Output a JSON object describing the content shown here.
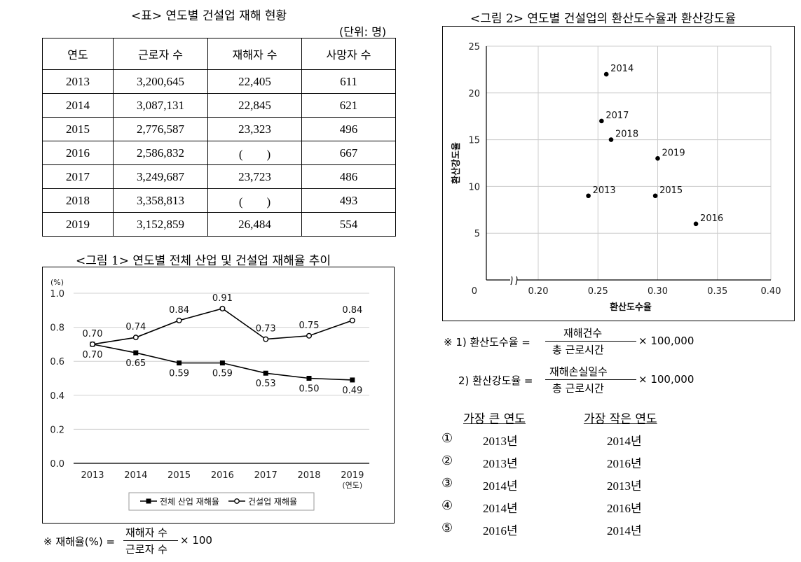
{
  "table": {
    "caption": "<표> 연도별 건설업 재해 현황",
    "unit": "(단위: 명)",
    "headers": [
      "연도",
      "근로자 수",
      "재해자 수",
      "사망자 수"
    ],
    "rows": [
      [
        "2013",
        "3,200,645",
        "22,405",
        "611"
      ],
      [
        "2014",
        "3,087,131",
        "22,845",
        "621"
      ],
      [
        "2015",
        "2,776,587",
        "23,323",
        "496"
      ],
      [
        "2016",
        "2,586,832",
        "(　　)",
        "667"
      ],
      [
        "2017",
        "3,249,687",
        "23,723",
        "486"
      ],
      [
        "2018",
        "3,358,813",
        "(　　)",
        "493"
      ],
      [
        "2019",
        "3,152,859",
        "26,484",
        "554"
      ]
    ]
  },
  "chart_data": [
    {
      "type": "line",
      "title": "<그림 1> 연도별 전체 산업 및 건설업 재해율 추이",
      "ylabel": "(%)",
      "xlabel": "(연도)",
      "categories": [
        "2013",
        "2014",
        "2015",
        "2016",
        "2017",
        "2018",
        "2019"
      ],
      "ylim": [
        0,
        1.0
      ],
      "yticks": [
        "0.0",
        "0.2",
        "0.4",
        "0.6",
        "0.8",
        "1.0"
      ],
      "grid": true,
      "legend": "bottom",
      "series": [
        {
          "name": "전체 산업 재해율",
          "marker": "square",
          "values": [
            0.7,
            0.65,
            0.59,
            0.59,
            0.53,
            0.5,
            0.49
          ],
          "labels": [
            "0.70",
            "0.65",
            "0.59",
            "0.59",
            "0.53",
            "0.50",
            "0.49"
          ]
        },
        {
          "name": "건설업 재해율",
          "marker": "circle",
          "values": [
            0.7,
            0.74,
            0.84,
            0.91,
            0.73,
            0.75,
            0.84
          ],
          "labels": [
            "0.70",
            "0.74",
            "0.84",
            "0.91",
            "0.73",
            "0.75",
            "0.84"
          ]
        }
      ]
    },
    {
      "type": "scatter",
      "title": "<그림 2> 연도별 건설업의 환산도수율과 환산강도율",
      "xlabel": "환산도수율",
      "ylabel": "환산강도율",
      "xlim": [
        0.15,
        0.4
      ],
      "ylim": [
        0,
        25
      ],
      "x_origin_label": "0",
      "xticks": [
        "0.20",
        "0.25",
        "0.30",
        "0.35",
        "0.40"
      ],
      "yticks": [
        "5",
        "10",
        "15",
        "20",
        "25"
      ],
      "grid": true,
      "points": [
        {
          "label": "2013",
          "x": 0.242,
          "y": 9.0
        },
        {
          "label": "2014",
          "x": 0.257,
          "y": 22.0
        },
        {
          "label": "2015",
          "x": 0.298,
          "y": 9.0
        },
        {
          "label": "2016",
          "x": 0.332,
          "y": 6.0
        },
        {
          "label": "2017",
          "x": 0.253,
          "y": 17.0
        },
        {
          "label": "2018",
          "x": 0.261,
          "y": 15.0
        },
        {
          "label": "2019",
          "x": 0.3,
          "y": 13.0
        }
      ]
    }
  ],
  "formulas": {
    "rate": {
      "prefix": "※ 재해율(%) =",
      "num": "재해자 수",
      "den": "근로자 수",
      "mult": "× 100"
    },
    "f1": {
      "prefix": "※ 1) 환산도수율 =",
      "num": "재해건수",
      "den": "총 근로시간",
      "mult": "× 100,000"
    },
    "f2": {
      "prefix": "2) 환산강도율 =",
      "num": "재해손실일수",
      "den": "총 근로시간",
      "mult": "× 100,000"
    }
  },
  "options": {
    "header_largest": "가장 큰 연도",
    "header_smallest": "가장 작은 연도",
    "items": [
      {
        "num": "①",
        "largest": "2013년",
        "smallest": "2014년"
      },
      {
        "num": "②",
        "largest": "2013년",
        "smallest": "2016년"
      },
      {
        "num": "③",
        "largest": "2014년",
        "smallest": "2013년"
      },
      {
        "num": "④",
        "largest": "2014년",
        "smallest": "2016년"
      },
      {
        "num": "⑤",
        "largest": "2016년",
        "smallest": "2014년"
      }
    ]
  }
}
